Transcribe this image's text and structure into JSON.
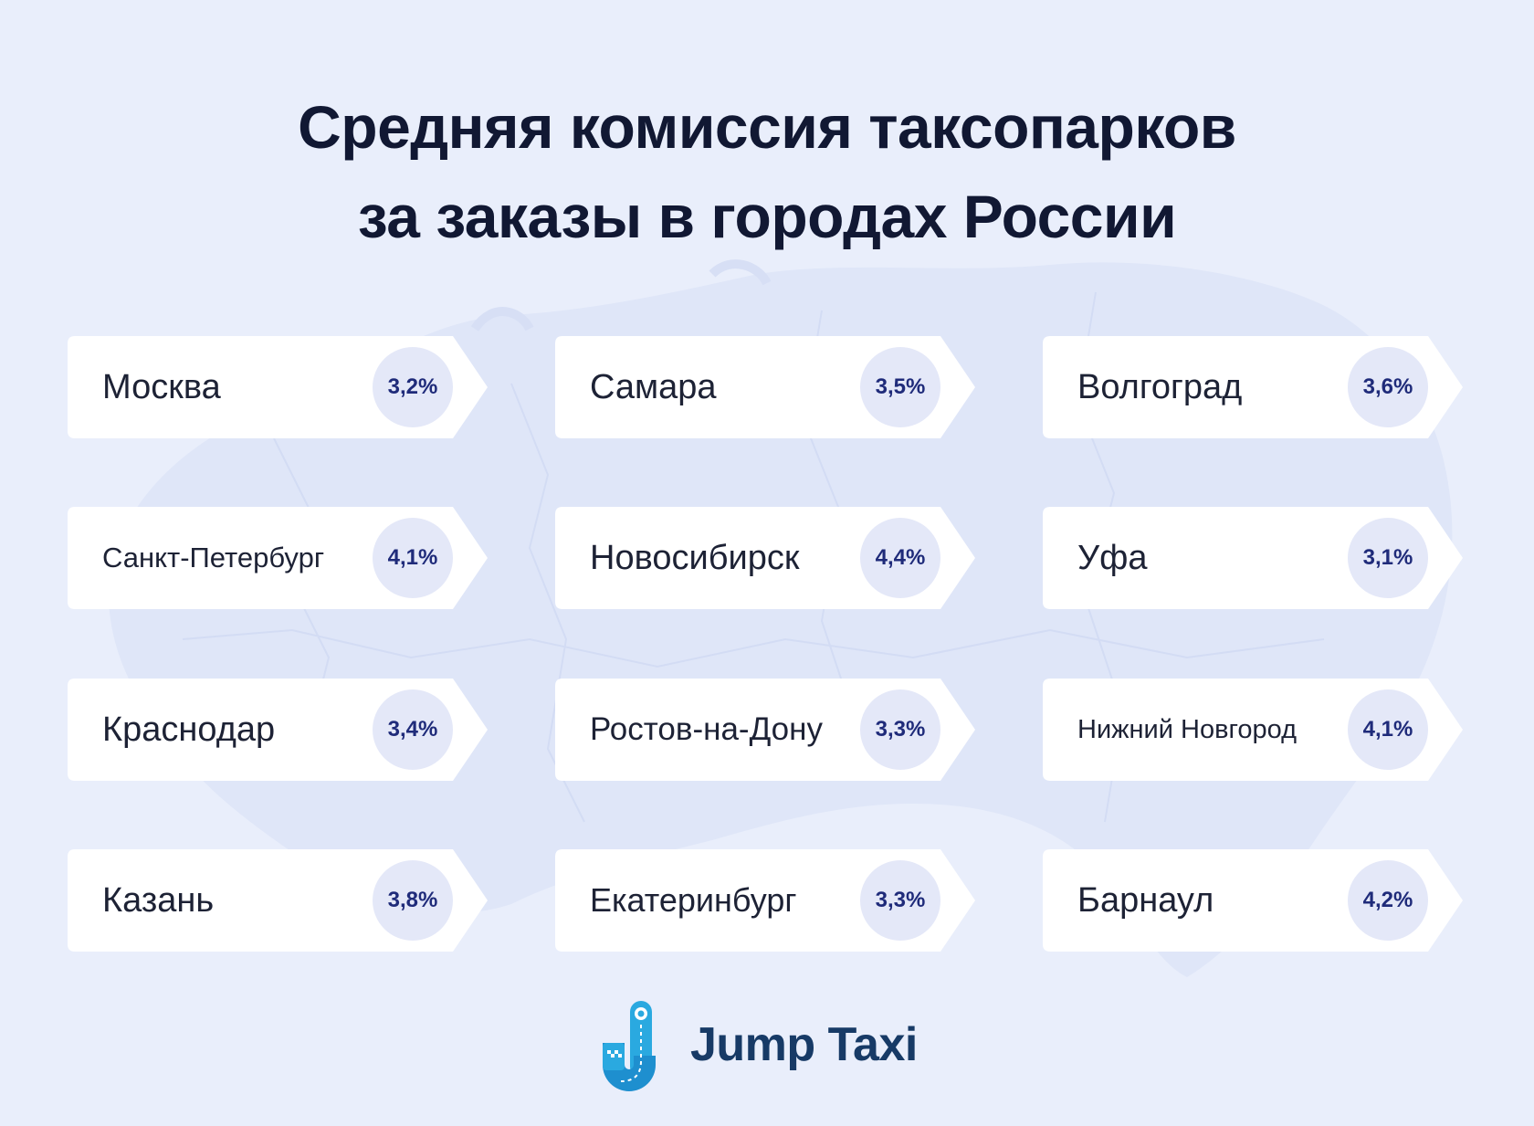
{
  "title": {
    "line1": "Средняя комиссия таксопарков",
    "line2": "за заказы в городах России"
  },
  "cities": [
    {
      "name": "Москва",
      "value": "3,2%"
    },
    {
      "name": "Самара",
      "value": "3,5%"
    },
    {
      "name": "Волгоград",
      "value": "3,6%"
    },
    {
      "name": "Санкт-Петербург",
      "value": "4,1%"
    },
    {
      "name": "Новосибирск",
      "value": "4,4%"
    },
    {
      "name": "Уфа",
      "value": "3,1%"
    },
    {
      "name": "Краснодар",
      "value": "3,4%"
    },
    {
      "name": "Ростов-на-Дону",
      "value": "3,3%"
    },
    {
      "name": "Нижний Новгород",
      "value": "4,1%"
    },
    {
      "name": "Казань",
      "value": "3,8%"
    },
    {
      "name": "Екатеринбург",
      "value": "3,3%"
    },
    {
      "name": "Барнаул",
      "value": "4,2%"
    }
  ],
  "logo": {
    "brand": "Jump Taxi",
    "icon": "jump-taxi-logo-icon"
  },
  "colors": {
    "background": "#e9eefb",
    "title": "#111833",
    "badge_bg": "#e4e8f8",
    "badge_text": "#1f2b7a",
    "brand_text": "#173a66",
    "logo_blue": "#2aa9e0"
  }
}
